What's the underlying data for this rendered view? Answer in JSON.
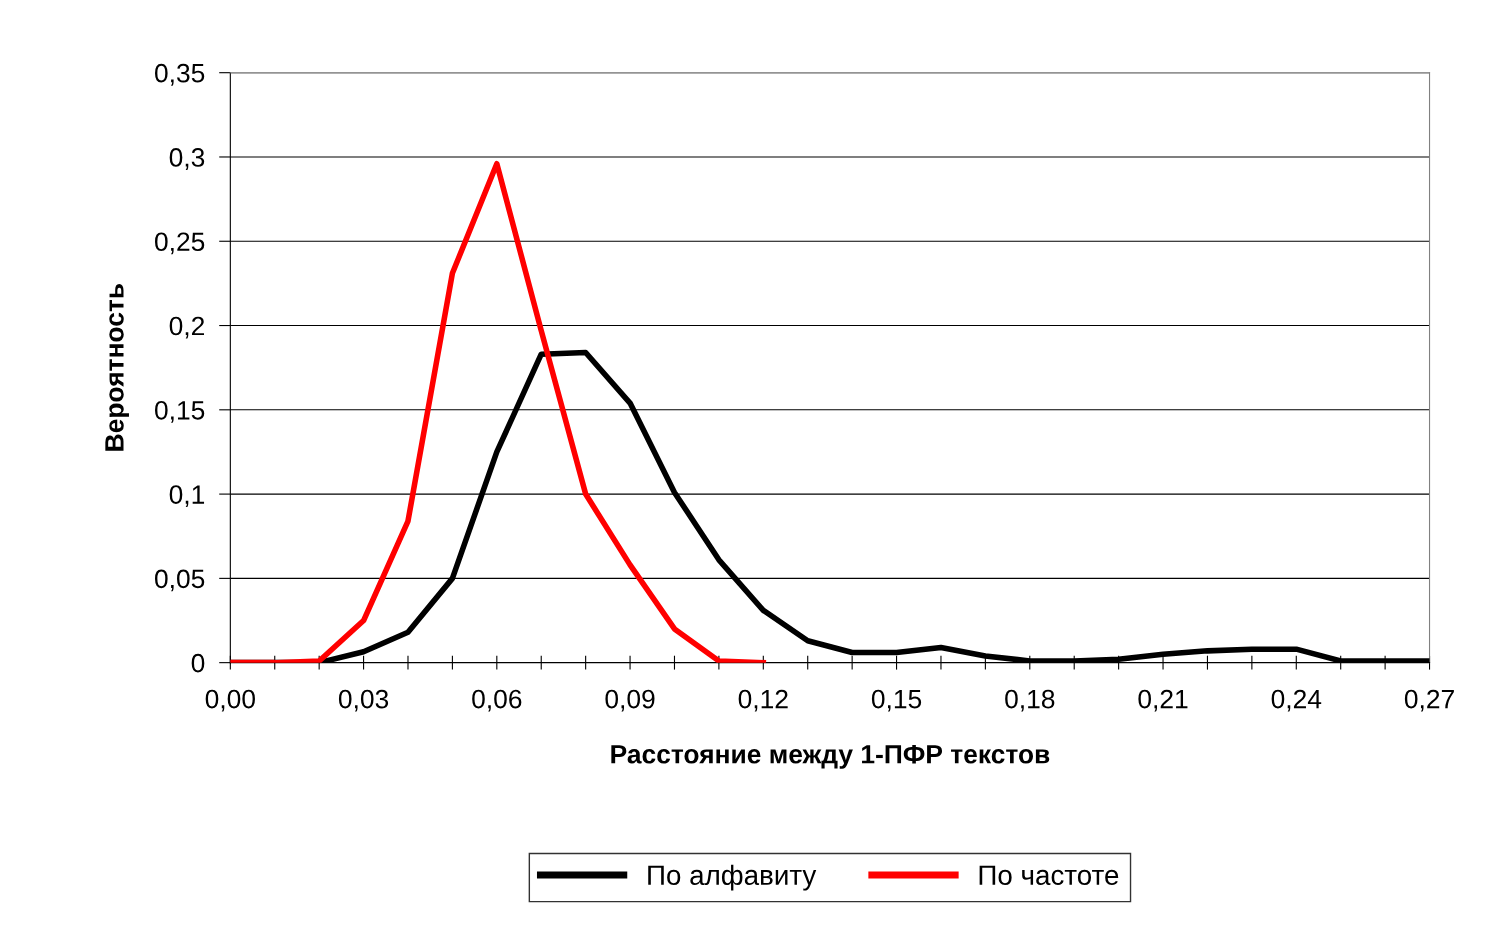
{
  "chart_data": {
    "type": "line",
    "xlabel": "Расстояние между 1-ПФР текстов",
    "ylabel": "Вероятность",
    "categories": [
      "0,00",
      null,
      null,
      "0,03",
      null,
      null,
      "0,06",
      null,
      null,
      "0,09",
      null,
      null,
      "0,12",
      null,
      null,
      "0,15",
      null,
      null,
      "0,18",
      null,
      null,
      "0,21",
      null,
      null,
      "0,24",
      null,
      null,
      "0,27"
    ],
    "series": [
      {
        "name": "По алфавиту",
        "color": "#000000",
        "values": [
          0,
          0,
          0,
          0.0065,
          0.018,
          0.05,
          0.125,
          0.183,
          0.184,
          0.154,
          0.101,
          0.061,
          0.031,
          0.013,
          0.006,
          0.006,
          0.009,
          0.004,
          0.001,
          0.001,
          0.002,
          0.005,
          0.007,
          0.008,
          0.008,
          0.001,
          0.001,
          0.001
        ]
      },
      {
        "name": "По частоте",
        "color": "#ff0000",
        "values": [
          0,
          0,
          0.001,
          0.025,
          0.084,
          0.231,
          0.296,
          0.197,
          0.1,
          0.058,
          0.02,
          0.001,
          0,
          null,
          null,
          null,
          null,
          null,
          null,
          null,
          null,
          null,
          null,
          null,
          null,
          null,
          null,
          null
        ]
      }
    ],
    "ylim": [
      0,
      0.35
    ],
    "yticks": [
      {
        "value": 0,
        "label": "0"
      },
      {
        "value": 0.05,
        "label": "0,05"
      },
      {
        "value": 0.1,
        "label": "0,1"
      },
      {
        "value": 0.15,
        "label": "0,15"
      },
      {
        "value": 0.2,
        "label": "0,2"
      },
      {
        "value": 0.25,
        "label": "0,25"
      },
      {
        "value": 0.3,
        "label": "0,3"
      },
      {
        "value": 0.35,
        "label": "0,35"
      }
    ],
    "grid": "y",
    "legend": "bottom",
    "marker": "none",
    "line_style": "solid"
  }
}
